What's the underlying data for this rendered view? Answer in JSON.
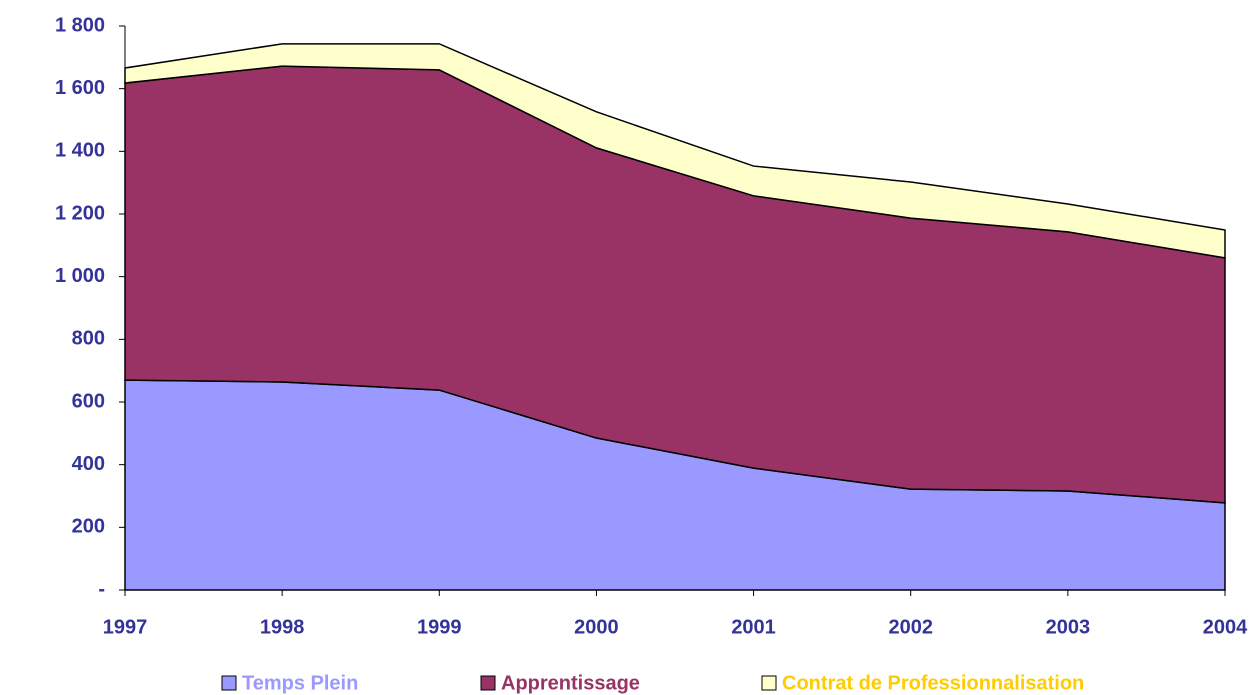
{
  "chart_data": {
    "type": "stacked_area",
    "categories": [
      "1997",
      "1998",
      "1999",
      "2000",
      "2001",
      "2002",
      "2003",
      "2004"
    ],
    "series": [
      {
        "name": "Temps Plein",
        "color": "#9999ff",
        "text_color": "#9999ff",
        "values": [
          670,
          664,
          638,
          485,
          389,
          322,
          316,
          278
        ]
      },
      {
        "name": "Apprentissage",
        "color": "#993366",
        "text_color": "#993366",
        "values": [
          948,
          1008,
          1022,
          926,
          869,
          865,
          827,
          782
        ]
      },
      {
        "name": "Contrat de Professionnalisation",
        "color": "#ffffcc",
        "text_color": "#ffcc00",
        "values": [
          48,
          71,
          83,
          115,
          95,
          115,
          89,
          89
        ]
      }
    ],
    "ylim": [
      0,
      1800
    ],
    "yticks": [
      {
        "value": 0,
        "label": "-"
      },
      200,
      400,
      600,
      800,
      {
        "value": 1000,
        "label": "1 000"
      },
      {
        "value": 1200,
        "label": "1 200"
      },
      {
        "value": 1400,
        "label": "1 400"
      },
      {
        "value": 1600,
        "label": "1 600"
      },
      {
        "value": 1800,
        "label": "1 800"
      }
    ],
    "grid": false,
    "legend": "bottom"
  }
}
